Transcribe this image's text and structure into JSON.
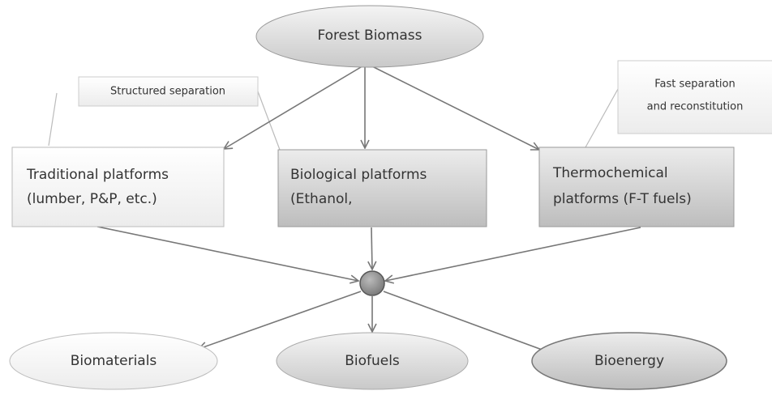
{
  "source": {
    "label": "Forest Biomass"
  },
  "callouts": [
    {
      "lines": [
        "Structured separation"
      ]
    },
    {
      "lines": [
        "Fast separation",
        "and reconstitution"
      ]
    }
  ],
  "platforms": [
    {
      "lines": [
        "Traditional platforms",
        "(lumber, P&P, etc.)"
      ]
    },
    {
      "lines": [
        "Biological platforms",
        "(Ethanol,"
      ]
    },
    {
      "lines": [
        "Thermochemical",
        "platforms (F-T fuels)"
      ]
    }
  ],
  "outputs": [
    {
      "label": "Biomaterials"
    },
    {
      "label": "Biofuels"
    },
    {
      "label": "Bioenergy"
    }
  ]
}
